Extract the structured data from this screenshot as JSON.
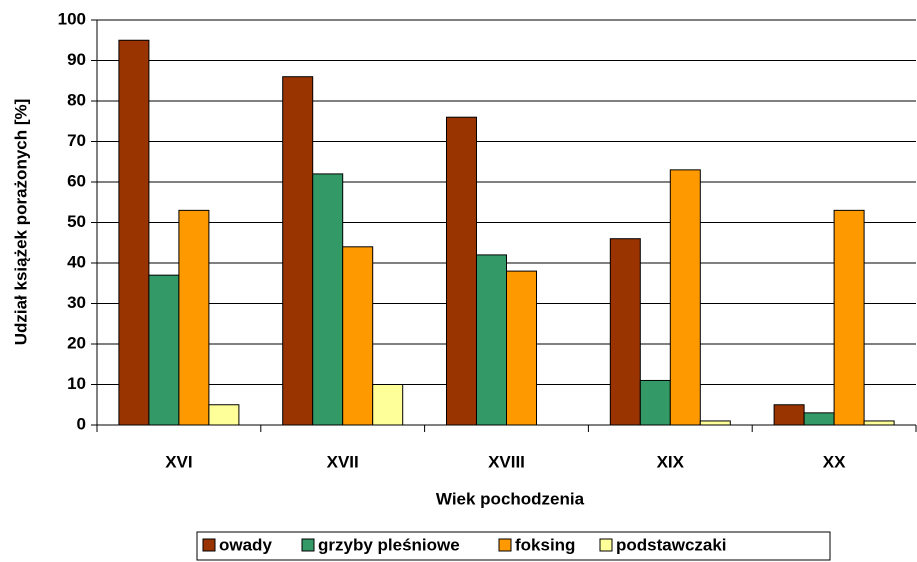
{
  "chart_data": {
    "type": "bar",
    "categories": [
      "XVI",
      "XVII",
      "XVIII",
      "XIX",
      "XX"
    ],
    "series": [
      {
        "name": "owady",
        "color": "#993300",
        "values": [
          95,
          86,
          76,
          46,
          5
        ]
      },
      {
        "name": "grzyby pleśniowe",
        "color": "#339966",
        "values": [
          37,
          62,
          42,
          11,
          3
        ]
      },
      {
        "name": "foksing",
        "color": "#ff9900",
        "values": [
          53,
          44,
          38,
          63,
          53
        ]
      },
      {
        "name": "podstawczaki",
        "color": "#ffff99",
        "values": [
          5,
          10,
          0,
          1,
          1
        ]
      }
    ],
    "xlabel": "Wiek pochodzenia",
    "ylabel": "Udział książek porażonych [%]",
    "ylim": [
      0,
      100
    ],
    "yticks": [
      0,
      10,
      20,
      30,
      40,
      50,
      60,
      70,
      80,
      90,
      100
    ],
    "grid": true,
    "legend": "bottom"
  }
}
